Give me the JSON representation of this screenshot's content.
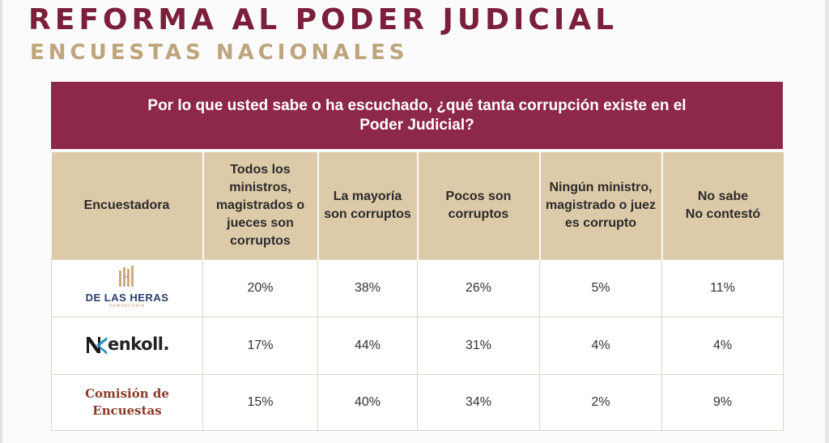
{
  "header": {
    "title": "REFORMA AL PODER JUDICIAL",
    "subtitle": "ENCUESTAS NACIONALES"
  },
  "question": "Por lo que usted sabe o ha escuchado, ¿qué tanta corrupción existe en el Poder Judicial?",
  "table": {
    "columns": [
      "Encuestadora",
      "Todos los ministros, magistrados o jueces son corruptos",
      "La mayoría son corruptos",
      "Pocos son corruptos",
      "Ningún ministro, magistrado o juez es corrupto",
      "No sabe No contestó"
    ],
    "rows": [
      {
        "pollster": "DE LAS HERAS",
        "pollster_sub": "DEMOSCOPIA",
        "values": [
          "20%",
          "38%",
          "26%",
          "5%",
          "11%"
        ]
      },
      {
        "pollster": "enkoll.",
        "values": [
          "17%",
          "44%",
          "31%",
          "4%",
          "4%"
        ]
      },
      {
        "pollster": "Comisión de Encuestas",
        "values": [
          "15%",
          "40%",
          "34%",
          "2%",
          "9%"
        ]
      }
    ]
  },
  "colors": {
    "title": "#7b1f3a",
    "subtitle": "#bda57c",
    "question_bg": "#8e2848",
    "header_bg": "#ddcaa8"
  }
}
